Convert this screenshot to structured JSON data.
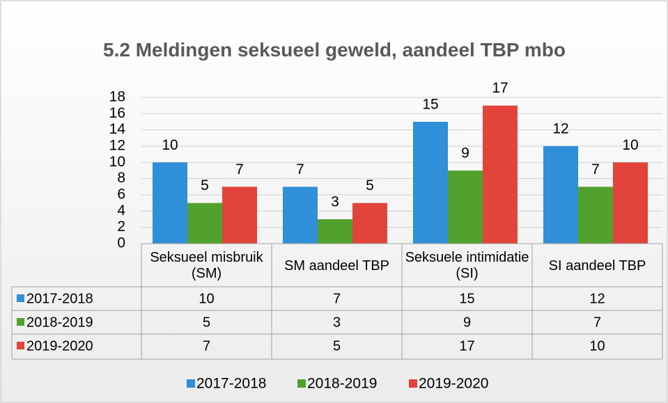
{
  "chart_data": {
    "type": "bar",
    "title": "5.2 Meldingen seksueel geweld, aandeel TBP mbo",
    "categories": [
      "Seksueel misbruik (SM)",
      "SM aandeel TBP",
      "Seksuele intimidatie (SI)",
      "SI aandeel TBP"
    ],
    "series": [
      {
        "name": "2017-2018",
        "color": "#2f8fd8",
        "values": [
          10,
          7,
          15,
          12
        ]
      },
      {
        "name": "2018-2019",
        "color": "#52a12f",
        "values": [
          5,
          3,
          9,
          7
        ]
      },
      {
        "name": "2019-2020",
        "color": "#e2443b",
        "values": [
          7,
          5,
          17,
          10
        ]
      }
    ],
    "ylim": [
      0,
      18
    ],
    "yticks": [
      0,
      2,
      4,
      6,
      8,
      10,
      12,
      14,
      16,
      18
    ],
    "grid": true,
    "data_table": true,
    "legend": "bottom"
  }
}
